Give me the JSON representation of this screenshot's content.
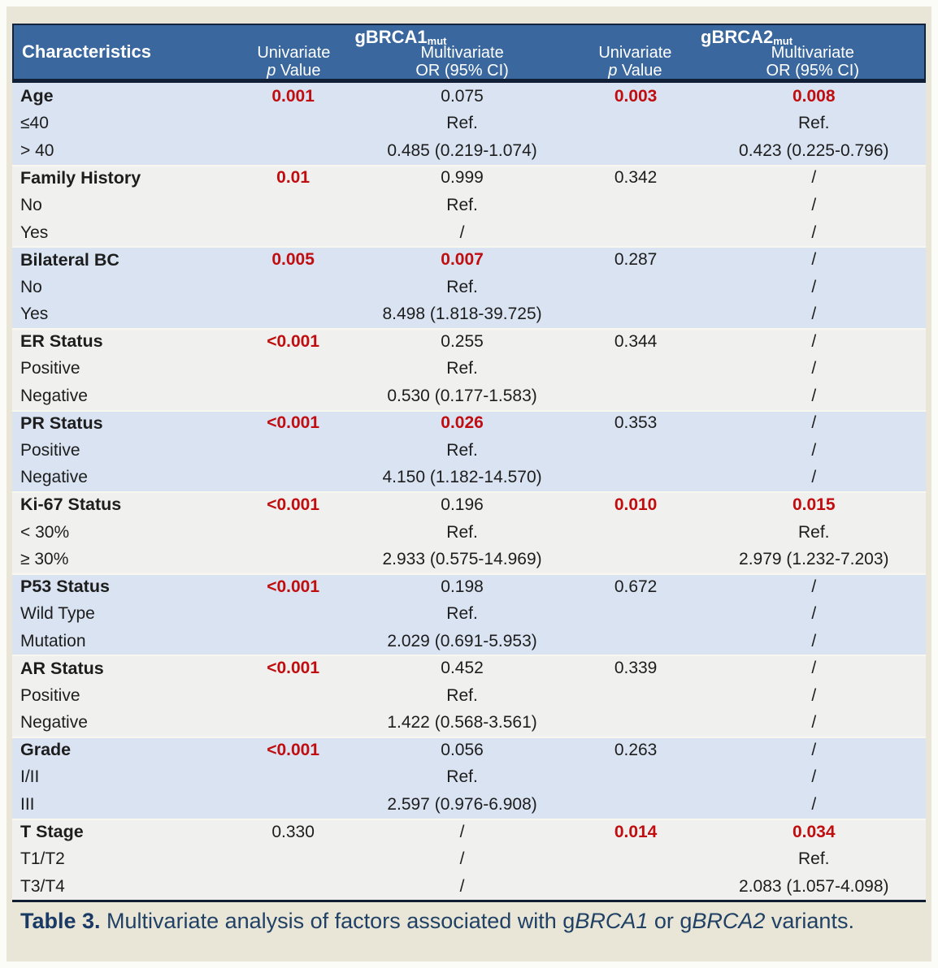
{
  "colors": {
    "header_blue": "#3a689e",
    "dark_navy_border": "#111f37",
    "stripe_light_blue": "#d9e3f1",
    "stripe_off_white": "#f0f1ee",
    "significant_red": "#c00d10",
    "caption_navy": "#204165",
    "page_cream": "#e9e6d7"
  },
  "table": {
    "header": {
      "characteristics": "Characteristics",
      "group1": {
        "name": "gBRCA1",
        "sup": "mut"
      },
      "group2": {
        "name": "gBRCA2",
        "sup": "mut"
      },
      "univariate_line1": "Univariate",
      "univariate_p": "p",
      "univariate_value": " Value",
      "multivariate_line1": "Multivariate",
      "multivariate_line2": "OR (95% CI)"
    },
    "groups": [
      {
        "label": "Age",
        "u1": "0.001",
        "u1_red": true,
        "m1": "0.075",
        "m1_red": false,
        "u2": "0.003",
        "u2_red": true,
        "m2": "0.008",
        "m2_red": true,
        "subs": [
          {
            "label": "≤40",
            "m1": "Ref.",
            "m2": "Ref."
          },
          {
            "label": "> 40",
            "m1": "0.485 (0.219-1.074)",
            "m2": "0.423 (0.225-0.796)"
          }
        ]
      },
      {
        "label": "Family History",
        "u1": "0.01",
        "u1_red": true,
        "m1": "0.999",
        "m1_red": false,
        "u2": "0.342",
        "u2_red": false,
        "m2": "/",
        "m2_red": false,
        "subs": [
          {
            "label": "No",
            "m1": "Ref.",
            "m2": "/"
          },
          {
            "label": "Yes",
            "m1": "/",
            "m2": "/"
          }
        ]
      },
      {
        "label": "Bilateral BC",
        "u1": "0.005",
        "u1_red": true,
        "m1": "0.007",
        "m1_red": true,
        "u2": "0.287",
        "u2_red": false,
        "m2": "/",
        "m2_red": false,
        "subs": [
          {
            "label": "No",
            "m1": "Ref.",
            "m2": "/"
          },
          {
            "label": "Yes",
            "m1": "8.498 (1.818-39.725)",
            "m2": "/"
          }
        ]
      },
      {
        "label": "ER Status",
        "u1": "<0.001",
        "u1_red": true,
        "m1": "0.255",
        "m1_red": false,
        "u2": "0.344",
        "u2_red": false,
        "m2": "/",
        "m2_red": false,
        "subs": [
          {
            "label": "Positive",
            "m1": "Ref.",
            "m2": "/"
          },
          {
            "label": "Negative",
            "m1": "0.530 (0.177-1.583)",
            "m2": "/"
          }
        ]
      },
      {
        "label": "PR Status",
        "u1": "<0.001",
        "u1_red": true,
        "m1": "0.026",
        "m1_red": true,
        "u2": "0.353",
        "u2_red": false,
        "m2": "/",
        "m2_red": false,
        "subs": [
          {
            "label": "Positive",
            "m1": "Ref.",
            "m2": "/"
          },
          {
            "label": "Negative",
            "m1": "4.150 (1.182-14.570)",
            "m2": "/"
          }
        ]
      },
      {
        "label": "Ki-67 Status",
        "u1": "<0.001",
        "u1_red": true,
        "m1": "0.196",
        "m1_red": false,
        "u2": "0.010",
        "u2_red": true,
        "m2": "0.015",
        "m2_red": true,
        "subs": [
          {
            "label": "< 30%",
            "m1": "Ref.",
            "m2": "Ref."
          },
          {
            "label": "≥ 30%",
            "m1": "2.933 (0.575-14.969)",
            "m2": "2.979 (1.232-7.203)"
          }
        ]
      },
      {
        "label": "P53 Status",
        "u1": "<0.001",
        "u1_red": true,
        "m1": "0.198",
        "m1_red": false,
        "u2": "0.672",
        "u2_red": false,
        "m2": "/",
        "m2_red": false,
        "subs": [
          {
            "label": "Wild Type",
            "m1": "Ref.",
            "m2": "/"
          },
          {
            "label": "Mutation",
            "m1": "2.029 (0.691-5.953)",
            "m2": "/"
          }
        ]
      },
      {
        "label": "AR Status",
        "u1": "<0.001",
        "u1_red": true,
        "m1": "0.452",
        "m1_red": false,
        "u2": "0.339",
        "u2_red": false,
        "m2": "/",
        "m2_red": false,
        "subs": [
          {
            "label": "Positive",
            "m1": "Ref.",
            "m2": "/"
          },
          {
            "label": "Negative",
            "m1": "1.422 (0.568-3.561)",
            "m2": "/"
          }
        ]
      },
      {
        "label": "Grade",
        "u1": "<0.001",
        "u1_red": true,
        "m1": "0.056",
        "m1_red": false,
        "u2": "0.263",
        "u2_red": false,
        "m2": "/",
        "m2_red": false,
        "subs": [
          {
            "label": "I/II",
            "m1": "Ref.",
            "m2": "/"
          },
          {
            "label": "III",
            "m1": "2.597 (0.976-6.908)",
            "m2": "/"
          }
        ]
      },
      {
        "label": "T Stage",
        "u1": "0.330",
        "u1_red": false,
        "m1": "/",
        "m1_red": false,
        "u2": "0.014",
        "u2_red": true,
        "m2": "0.034",
        "m2_red": true,
        "subs": [
          {
            "label": "T1/T2",
            "m1": "/",
            "m2": "Ref."
          },
          {
            "label": "T3/T4",
            "m1": "/",
            "m2": "2.083 (1.057-4.098)"
          }
        ]
      }
    ]
  },
  "caption": {
    "prefix": "Table 3.",
    "part1": " Multivariate analysis of factors associated with g",
    "gene1": "BRCA1",
    "part2": " or g",
    "gene2": "BRCA2",
    "part3": " variants."
  }
}
